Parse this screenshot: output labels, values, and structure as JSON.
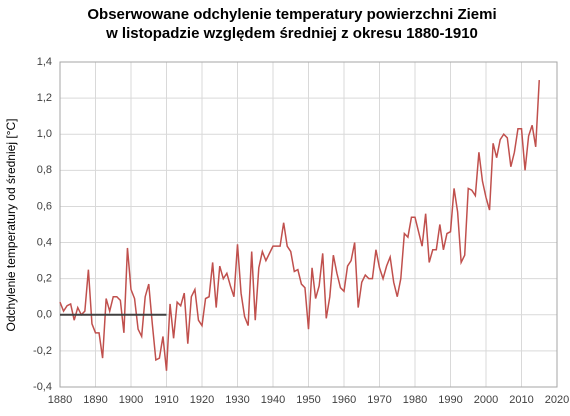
{
  "chart_data": {
    "type": "line",
    "title": [
      "Obserwowane odchylenie temperatury powierzchni Ziemi",
      "w listopadzie względem średniej z okresu 1880-1910"
    ],
    "ylabel": "Odchylenie temperatury od średniej [°C]",
    "xlim": [
      1880,
      2020
    ],
    "xticks": [
      1880,
      1890,
      1900,
      1910,
      1920,
      1930,
      1940,
      1950,
      1960,
      1970,
      1980,
      1990,
      2000,
      2010,
      2020
    ],
    "ylim": [
      -0.4,
      1.4
    ],
    "yticks": [
      {
        "value": -0.4,
        "label": "-0,4"
      },
      {
        "value": -0.2,
        "label": "-0,2"
      },
      {
        "value": 0,
        "label": "0,0"
      },
      {
        "value": 0.2,
        "label": "0,2"
      },
      {
        "value": 0.4,
        "label": "0,4"
      },
      {
        "value": 0.6,
        "label": "0,6"
      },
      {
        "value": 0.8,
        "label": "0,8"
      },
      {
        "value": 1.0,
        "label": "1,0"
      },
      {
        "value": 1.2,
        "label": "1,2"
      },
      {
        "value": 1.4,
        "label": "1,4"
      }
    ],
    "grid": true,
    "x": [
      1880,
      1881,
      1882,
      1883,
      1884,
      1885,
      1886,
      1887,
      1888,
      1889,
      1890,
      1891,
      1892,
      1893,
      1894,
      1895,
      1896,
      1897,
      1898,
      1899,
      1900,
      1901,
      1902,
      1903,
      1904,
      1905,
      1906,
      1907,
      1908,
      1909,
      1910,
      1911,
      1912,
      1913,
      1914,
      1915,
      1916,
      1917,
      1918,
      1919,
      1920,
      1921,
      1922,
      1923,
      1924,
      1925,
      1926,
      1927,
      1928,
      1929,
      1930,
      1931,
      1932,
      1933,
      1934,
      1935,
      1936,
      1937,
      1938,
      1939,
      1940,
      1941,
      1942,
      1943,
      1944,
      1945,
      1946,
      1947,
      1948,
      1949,
      1950,
      1951,
      1952,
      1953,
      1954,
      1955,
      1956,
      1957,
      1958,
      1959,
      1960,
      1961,
      1962,
      1963,
      1964,
      1965,
      1966,
      1967,
      1968,
      1969,
      1970,
      1971,
      1972,
      1973,
      1974,
      1975,
      1976,
      1977,
      1978,
      1979,
      1980,
      1981,
      1982,
      1983,
      1984,
      1985,
      1986,
      1987,
      1988,
      1989,
      1990,
      1991,
      1992,
      1993,
      1994,
      1995,
      1996,
      1997,
      1998,
      1999,
      2000,
      2001,
      2002,
      2003,
      2004,
      2005,
      2006,
      2007,
      2008,
      2009,
      2010,
      2011,
      2012,
      2013,
      2014,
      2015
    ],
    "series": [
      {
        "color": "#c0504d",
        "values": [
          0.07,
          0.02,
          0.05,
          0.06,
          -0.03,
          0.04,
          0.0,
          0.02,
          0.25,
          -0.05,
          -0.1,
          -0.1,
          -0.24,
          0.09,
          0.02,
          0.1,
          0.1,
          0.08,
          -0.1,
          0.37,
          0.14,
          0.09,
          -0.08,
          -0.12,
          0.1,
          0.17,
          -0.05,
          -0.25,
          -0.24,
          -0.12,
          -0.31,
          0.06,
          -0.13,
          0.07,
          0.05,
          0.12,
          -0.16,
          0.1,
          0.14,
          -0.03,
          -0.06,
          0.09,
          0.1,
          0.29,
          0.04,
          0.27,
          0.2,
          0.23,
          0.16,
          0.1,
          0.39,
          0.12,
          -0.01,
          -0.06,
          0.35,
          -0.03,
          0.26,
          0.35,
          0.3,
          0.34,
          0.38,
          0.38,
          0.38,
          0.51,
          0.38,
          0.35,
          0.24,
          0.25,
          0.17,
          0.15,
          -0.08,
          0.26,
          0.09,
          0.16,
          0.34,
          -0.02,
          0.1,
          0.33,
          0.23,
          0.15,
          0.13,
          0.27,
          0.3,
          0.4,
          0.04,
          0.18,
          0.22,
          0.2,
          0.2,
          0.36,
          0.26,
          0.2,
          0.27,
          0.32,
          0.18,
          0.1,
          0.2,
          0.45,
          0.43,
          0.54,
          0.54,
          0.46,
          0.38,
          0.56,
          0.29,
          0.36,
          0.36,
          0.5,
          0.36,
          0.45,
          0.46,
          0.7,
          0.57,
          0.29,
          0.33,
          0.7,
          0.69,
          0.66,
          0.9,
          0.74,
          0.65,
          0.58,
          0.95,
          0.87,
          0.97,
          1.0,
          0.98,
          0.82,
          0.9,
          1.03,
          1.03,
          0.8,
          0.99,
          1.05,
          0.93,
          1.3
        ]
      }
    ],
    "baseline": {
      "x": [
        1880,
        1910
      ],
      "values": [
        0,
        0
      ],
      "color": "#404040"
    }
  }
}
